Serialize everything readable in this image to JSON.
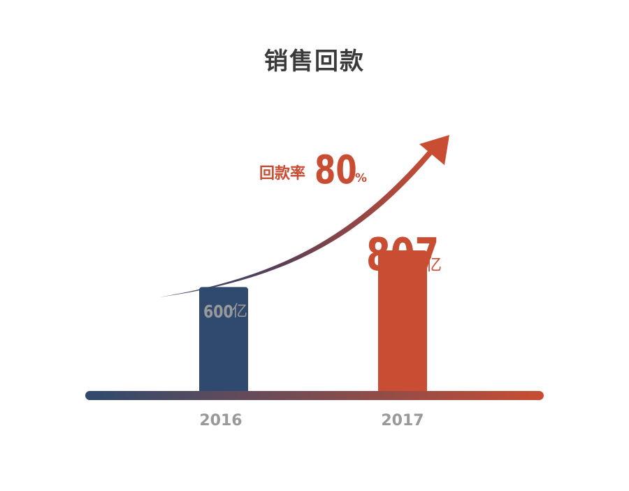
{
  "title": "销售回款",
  "colors": {
    "navy": "#2f4a6e",
    "orange": "#c84d33",
    "gray_text": "#999999",
    "title_text": "#3a3a3a"
  },
  "rate": {
    "label": "回款率",
    "value": "80",
    "unit": "%"
  },
  "chart_data": {
    "type": "bar",
    "title": "销售回款",
    "categories": [
      "2016",
      "2017"
    ],
    "values": [
      600,
      807
    ],
    "value_labels": [
      "600",
      "807"
    ],
    "unit": "亿",
    "ylim": [
      0,
      1800
    ],
    "grid": false,
    "annotation": "回款率 80%"
  }
}
